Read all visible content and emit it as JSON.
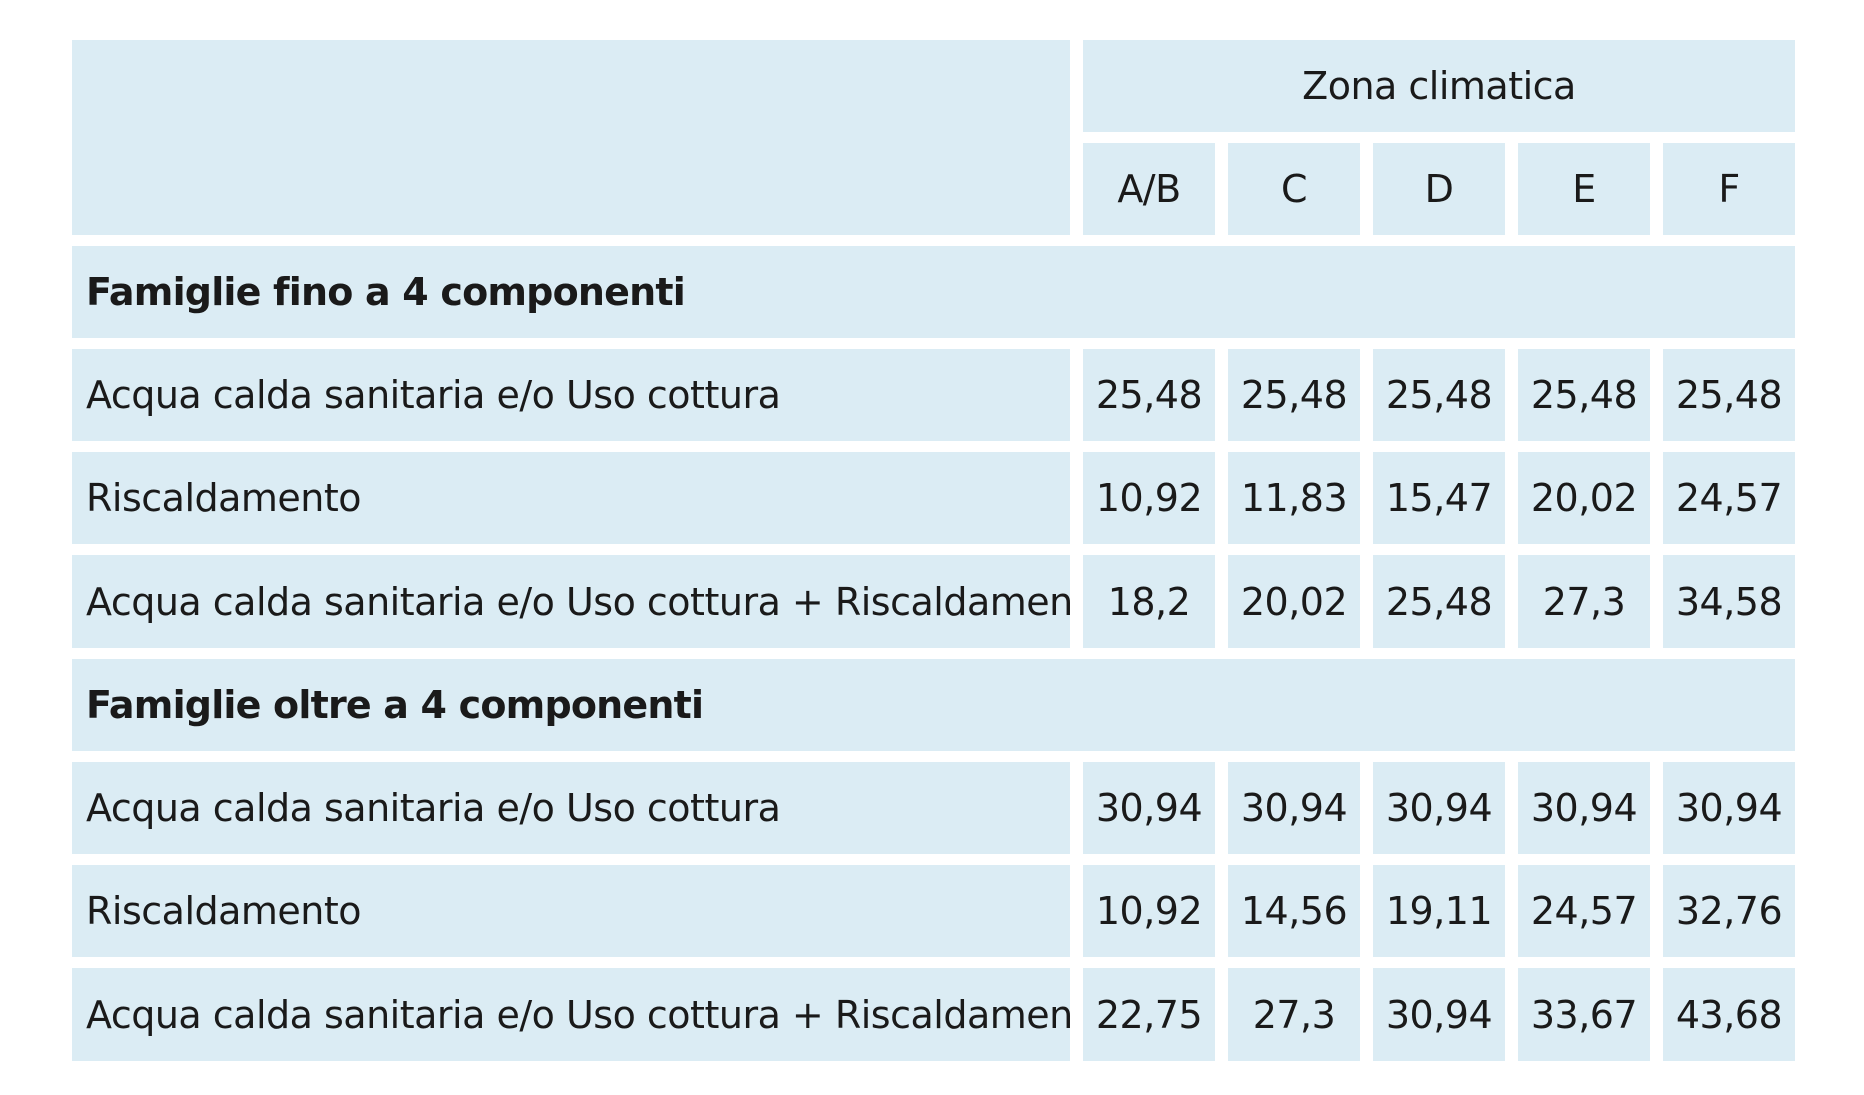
{
  "header": {
    "group_label": "Zona climatica",
    "zones": [
      "A/B",
      "C",
      "D",
      "E",
      "F"
    ]
  },
  "sections": [
    {
      "title": "Famiglie fino a 4 componenti",
      "rows": [
        {
          "label": "Acqua calda sanitaria e/o Uso cottura",
          "values": [
            "25,48",
            "25,48",
            "25,48",
            "25,48",
            "25,48"
          ]
        },
        {
          "label": "Riscaldamento",
          "values": [
            "10,92",
            "11,83",
            "15,47",
            "20,02",
            "24,57"
          ]
        },
        {
          "label": "Acqua calda sanitaria e/o Uso cottura + Riscaldamento",
          "values": [
            "18,2",
            "20,02",
            "25,48",
            "27,3",
            "34,58"
          ]
        }
      ]
    },
    {
      "title": "Famiglie oltre a 4 componenti",
      "rows": [
        {
          "label": "Acqua calda sanitaria e/o Uso cottura",
          "values": [
            "30,94",
            "30,94",
            "30,94",
            "30,94",
            "30,94"
          ]
        },
        {
          "label": "Riscaldamento",
          "values": [
            "10,92",
            "14,56",
            "19,11",
            "24,57",
            "32,76"
          ]
        },
        {
          "label": "Acqua calda sanitaria e/o Uso cottura + Riscaldamento",
          "values": [
            "22,75",
            "27,3",
            "30,94",
            "33,67",
            "43,68"
          ]
        }
      ]
    }
  ],
  "colors": {
    "cell_background": "#dbecf4",
    "page_background": "#ffffff",
    "text": "#1a1a1a"
  }
}
